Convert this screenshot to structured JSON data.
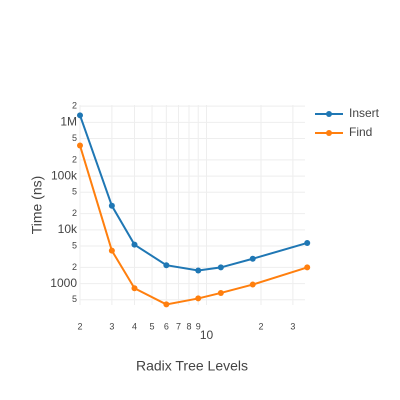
{
  "chart_data": {
    "type": "line",
    "x_label": "Radix Tree Levels",
    "y_label": "Time (ns)",
    "x": [
      2,
      3,
      4,
      6,
      9,
      12,
      18,
      36
    ],
    "series": [
      {
        "name": "Insert",
        "color": "#1f77b4",
        "values": [
          1350000,
          28000,
          5300,
          2200,
          1750,
          2000,
          2900,
          5700
        ]
      },
      {
        "name": "Find",
        "color": "#ff7f0e",
        "values": [
          370000,
          4100,
          820,
          410,
          530,
          670,
          960,
          2000
        ]
      }
    ],
    "xlim": [
      2,
      35
    ],
    "ylim": [
      400,
      2100000
    ],
    "x_log": true,
    "y_log": true,
    "grid": true,
    "legend": "top-right",
    "xticks": [
      2,
      3,
      4,
      5,
      6,
      7,
      8,
      9,
      10,
      {
        "value": 20,
        "label": "2"
      },
      {
        "value": 30,
        "label": "3"
      }
    ],
    "yticks": [
      {
        "value": 500,
        "label": "5"
      },
      1000,
      {
        "value": 2000,
        "label": "2"
      },
      {
        "value": 5000,
        "label": "5"
      },
      {
        "value": 10000,
        "label": "10k"
      },
      {
        "value": 20000,
        "label": "2"
      },
      {
        "value": 50000,
        "label": "5"
      },
      {
        "value": 100000,
        "label": "100k"
      },
      {
        "value": 200000,
        "label": "2"
      },
      {
        "value": 500000,
        "label": "5"
      },
      {
        "value": 1000000,
        "label": "1M"
      },
      {
        "value": 2000000,
        "label": "2"
      }
    ]
  }
}
